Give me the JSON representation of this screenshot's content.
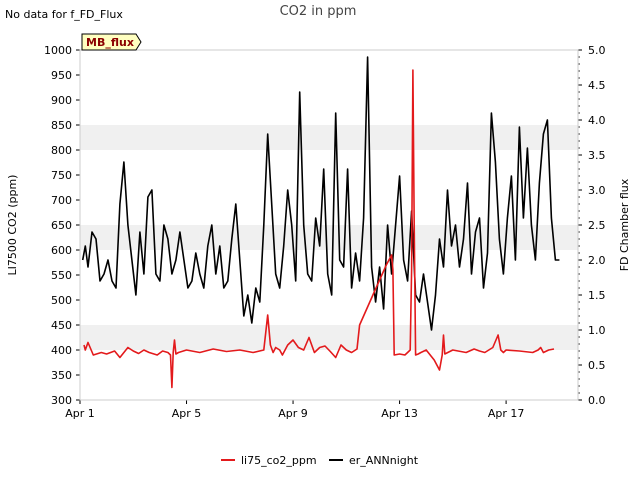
{
  "no_data_text": "No data for f_FD_Flux",
  "tag_label": "MB_flux",
  "chart_data": {
    "type": "line",
    "title": "CO2 in ppm",
    "ylabel": "LI7500 CO2 (ppm)",
    "y2label": "FD Chamber flux",
    "xlim": [
      0,
      18.7
    ],
    "ylim": [
      300,
      1000
    ],
    "y2lim": [
      0,
      5
    ],
    "yticks": [
      300,
      350,
      400,
      450,
      500,
      550,
      600,
      650,
      700,
      750,
      800,
      850,
      900,
      950,
      1000
    ],
    "ytick_labels": [
      "300",
      "350",
      "400",
      "450",
      "500",
      "550",
      "600",
      "650",
      "700",
      "750",
      "800",
      "850",
      "900",
      "950",
      "1000"
    ],
    "y2ticks": [
      0,
      0.5,
      1.0,
      1.5,
      2.0,
      2.5,
      3.0,
      3.5,
      4.0,
      4.5,
      5.0
    ],
    "y2tick_labels": [
      "0.0",
      "0.5",
      "1.0",
      "1.5",
      "2.0",
      "2.5",
      "3.0",
      "3.5",
      "4.0",
      "4.5",
      "5.0"
    ],
    "xticks": [
      0,
      4,
      8,
      12,
      16
    ],
    "xtick_labels": [
      "Apr 1",
      "Apr 5",
      "Apr 9",
      "Apr 13",
      "Apr 17"
    ],
    "legend": {
      "location": "bottom-center",
      "entries": [
        "li75_co2_ppm",
        "er_ANNnight"
      ]
    },
    "series": [
      {
        "name": "li75_co2_ppm",
        "axis": "left",
        "color": "#e31a1c",
        "x": [
          0.15,
          0.2,
          0.3,
          0.5,
          0.8,
          1.0,
          1.3,
          1.5,
          1.8,
          2.0,
          2.2,
          2.4,
          2.6,
          2.9,
          3.1,
          3.3,
          3.4,
          3.45,
          3.5,
          3.55,
          3.6,
          3.7,
          4.0,
          4.5,
          5.0,
          5.5,
          6.0,
          6.5,
          6.9,
          7.05,
          7.15,
          7.25,
          7.35,
          7.5,
          7.6,
          7.8,
          8.0,
          8.2,
          8.4,
          8.6,
          8.8,
          9.0,
          9.2,
          9.4,
          9.6,
          9.8,
          10.0,
          10.2,
          10.4,
          10.5,
          11.0,
          11.5,
          11.7,
          11.75,
          11.8,
          12.0,
          12.2,
          12.3,
          12.4,
          12.45,
          12.5,
          12.55,
          12.6,
          12.7,
          12.8,
          13.0,
          13.3,
          13.5,
          13.6,
          13.65,
          13.7,
          14.0,
          14.5,
          14.8,
          15.0,
          15.2,
          15.5,
          15.7,
          15.8,
          15.9,
          16.0,
          16.5,
          17.0,
          17.2,
          17.3,
          17.4,
          17.6,
          17.8
        ],
        "y": [
          410,
          400,
          415,
          390,
          395,
          392,
          398,
          385,
          405,
          398,
          393,
          400,
          395,
          390,
          398,
          395,
          390,
          325,
          395,
          420,
          392,
          395,
          400,
          395,
          402,
          397,
          400,
          395,
          400,
          470,
          410,
          395,
          405,
          400,
          390,
          410,
          420,
          405,
          400,
          425,
          395,
          405,
          408,
          397,
          385,
          410,
          400,
          395,
          402,
          450,
          510,
          570,
          590,
          560,
          390,
          392,
          390,
          395,
          400,
          560,
          960,
          650,
          390,
          392,
          395,
          400,
          380,
          360,
          390,
          430,
          392,
          400,
          395,
          402,
          398,
          395,
          405,
          430,
          400,
          395,
          400,
          398,
          395,
          400,
          405,
          395,
          400,
          402
        ]
      },
      {
        "name": "er_ANNnight",
        "axis": "right",
        "color": "#000000",
        "x": [
          0.1,
          0.2,
          0.3,
          0.45,
          0.6,
          0.75,
          0.9,
          1.05,
          1.2,
          1.35,
          1.5,
          1.65,
          1.8,
          1.95,
          2.1,
          2.25,
          2.4,
          2.55,
          2.7,
          2.85,
          3.0,
          3.15,
          3.3,
          3.45,
          3.6,
          3.75,
          3.9,
          4.05,
          4.2,
          4.35,
          4.5,
          4.65,
          4.8,
          4.95,
          5.1,
          5.25,
          5.4,
          5.55,
          5.7,
          5.85,
          6.0,
          6.15,
          6.3,
          6.45,
          6.6,
          6.75,
          6.9,
          7.05,
          7.2,
          7.35,
          7.5,
          7.65,
          7.8,
          7.95,
          8.1,
          8.25,
          8.4,
          8.55,
          8.7,
          8.85,
          9.0,
          9.15,
          9.3,
          9.45,
          9.6,
          9.75,
          9.9,
          10.05,
          10.2,
          10.35,
          10.5,
          10.65,
          10.8,
          10.95,
          11.1,
          11.25,
          11.4,
          11.55,
          11.7,
          11.85,
          12.0,
          12.15,
          12.3,
          12.45,
          12.6,
          12.75,
          12.9,
          13.05,
          13.2,
          13.35,
          13.5,
          13.65,
          13.8,
          13.95,
          14.1,
          14.25,
          14.4,
          14.55,
          14.7,
          14.85,
          15.0,
          15.15,
          15.3,
          15.45,
          15.6,
          15.75,
          15.9,
          16.05,
          16.2,
          16.35,
          16.5,
          16.65,
          16.8,
          16.95,
          17.1,
          17.25,
          17.4,
          17.55,
          17.7,
          17.85,
          18.0
        ],
        "y": [
          2.0,
          2.2,
          1.9,
          2.4,
          2.3,
          1.7,
          1.8,
          2.0,
          1.7,
          1.6,
          2.8,
          3.4,
          2.5,
          2.0,
          1.5,
          2.4,
          1.8,
          2.9,
          3.0,
          1.8,
          1.7,
          2.5,
          2.3,
          1.8,
          2.0,
          2.4,
          2.0,
          1.6,
          1.7,
          2.1,
          1.8,
          1.6,
          2.2,
          2.5,
          1.8,
          2.2,
          1.6,
          1.7,
          2.3,
          2.8,
          2.0,
          1.2,
          1.5,
          1.1,
          1.6,
          1.4,
          2.5,
          3.8,
          2.8,
          1.8,
          1.6,
          2.2,
          3.0,
          2.5,
          1.7,
          4.4,
          2.5,
          1.8,
          1.7,
          2.6,
          2.2,
          3.3,
          1.8,
          1.5,
          4.1,
          2.0,
          1.9,
          3.3,
          1.6,
          2.1,
          1.7,
          2.6,
          4.9,
          1.9,
          1.4,
          1.9,
          1.3,
          2.5,
          1.8,
          2.5,
          3.2,
          2.0,
          1.7,
          2.7,
          1.5,
          1.4,
          1.8,
          1.4,
          1.0,
          1.5,
          2.3,
          1.9,
          3.0,
          2.2,
          2.5,
          1.9,
          2.3,
          3.1,
          1.8,
          2.4,
          2.6,
          1.6,
          2.1,
          4.1,
          3.4,
          2.3,
          1.8,
          2.6,
          3.2,
          2.0,
          3.9,
          2.6,
          3.6,
          2.5,
          2.0,
          3.1,
          3.8,
          4.0,
          2.6,
          2.0,
          2.0
        ]
      }
    ]
  }
}
